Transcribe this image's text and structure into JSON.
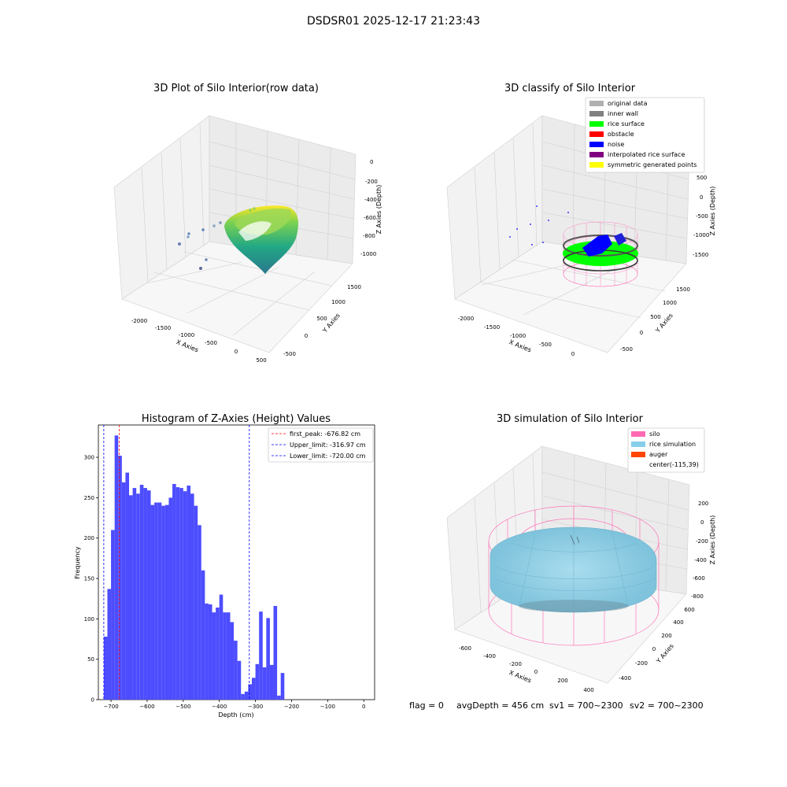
{
  "figure": {
    "suptitle": "DSDSR01 2025-12-17 21:23:43",
    "status_line": {
      "flag": "flag = 0",
      "avg_depth": "avgDepth = 456 cm",
      "sv1": "sv1 = 700~2300",
      "sv2": "sv2 = 700~2300"
    }
  },
  "chart_data": [
    {
      "type": "scatter",
      "projection": "3d",
      "title": "3D Plot of Silo Interior(row data)",
      "xlabel": "X Axies",
      "ylabel": "Y Axies",
      "zlabel": "Z Axies (Depth)",
      "x_ticks": [
        "-2000",
        "-1500",
        "-1000",
        "-500",
        "0",
        "500"
      ],
      "y_ticks": [
        "-500",
        "0",
        "500",
        "1000",
        "1500"
      ],
      "z_ticks": [
        "0",
        "-200",
        "-400",
        "-600",
        "-800",
        "-1000"
      ],
      "colormap": "viridis",
      "grid": true
    },
    {
      "type": "scatter",
      "projection": "3d",
      "title": "3D classify of Silo Interior",
      "xlabel": "X Axies",
      "ylabel": "Y Axies",
      "zlabel": "Z Axies (Depth)",
      "x_ticks": [
        "-2000",
        "-1500",
        "-1000",
        "-500",
        "0"
      ],
      "y_ticks": [
        "-500",
        "0",
        "500",
        "1000",
        "1500"
      ],
      "z_ticks": [
        "500",
        "0",
        "-500",
        "-1000",
        "-1500"
      ],
      "legend": [
        {
          "label": "original data",
          "color": "#b0b0b0"
        },
        {
          "label": "inner wall",
          "color": "#808080"
        },
        {
          "label": "rice surface",
          "color": "#00ff00"
        },
        {
          "label": "obstacle",
          "color": "#ff0000"
        },
        {
          "label": "noise",
          "color": "#0000ff"
        },
        {
          "label": "interpolated rice surface",
          "color": "#800080"
        },
        {
          "label": "symmetric generated points",
          "color": "#ffff00"
        }
      ],
      "legend_loc": "upper right",
      "grid": true
    },
    {
      "type": "bar",
      "title": "Histogram of Z-Axies (Height) Values",
      "xlabel": "Depth (cm)",
      "ylabel": "Frequency",
      "xlim": [
        -735,
        30
      ],
      "ylim": [
        0,
        340
      ],
      "x_ticks": [
        -700,
        -600,
        -500,
        -400,
        -300,
        -200,
        -100,
        0
      ],
      "y_ticks": [
        0,
        50,
        100,
        150,
        200,
        250,
        300
      ],
      "bin_width": 10,
      "bin_start": -720,
      "values": [
        78,
        137,
        210,
        327,
        302,
        269,
        281,
        253,
        262,
        255,
        266,
        262,
        259,
        241,
        244,
        244,
        240,
        241,
        250,
        267,
        263,
        262,
        258,
        265,
        255,
        240,
        216,
        160,
        119,
        118,
        108,
        114,
        130,
        108,
        108,
        96,
        73,
        48,
        7,
        10,
        19,
        27,
        44,
        109,
        40,
        101,
        43,
        116,
        5,
        33
      ],
      "bar_color": "#4d4dff",
      "lines": [
        {
          "label": "first_peak: -676.82 cm",
          "x": -676.82,
          "color": "#ff0000"
        },
        {
          "label": "Upper_limit: -316.97 cm",
          "x": -316.97,
          "color": "#0000ff"
        },
        {
          "label": "Lower_limit: -720.00 cm",
          "x": -720.0,
          "color": "#0000ff"
        }
      ],
      "legend_loc": "upper right"
    },
    {
      "type": "surface",
      "projection": "3d",
      "title": "3D simulation of Silo Interior",
      "xlabel": "X Axies",
      "ylabel": "Y Axies",
      "zlabel": "Z Axies (Depth)",
      "x_ticks": [
        "-600",
        "-400",
        "-200",
        "0",
        "200",
        "400"
      ],
      "y_ticks": [
        "-400",
        "-200",
        "0",
        "200",
        "400",
        "600"
      ],
      "z_ticks": [
        "200",
        "0",
        "-200",
        "-400",
        "-600",
        "-800"
      ],
      "legend": [
        {
          "label": "silo",
          "color": "#ff69b4"
        },
        {
          "label": "rice simulation",
          "color": "#87ceeb"
        },
        {
          "label": "auger",
          "color": "#ff4500"
        },
        {
          "label": "center(-115,39)",
          "color": ""
        }
      ],
      "legend_loc": "upper right",
      "grid": true
    }
  ]
}
